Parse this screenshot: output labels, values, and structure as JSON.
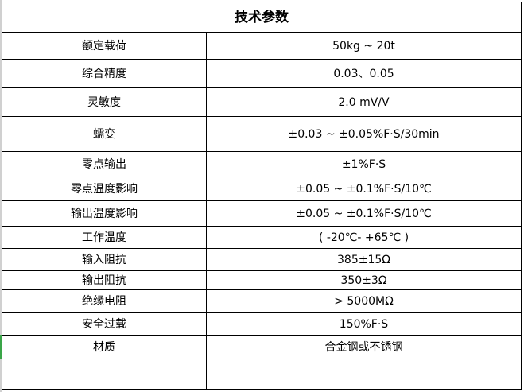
{
  "title": "技术参数",
  "rows": [
    {
      "label": "额定载荷",
      "value": "50kg ~ 20t"
    },
    {
      "label": "综合精度",
      "value": "0.03、0.05"
    },
    {
      "label": "灵敏度",
      "value": "2.0 mV/V"
    },
    {
      "label": "蠕变",
      "value": "±0.03 ~ ±0.05%F·S/30min"
    },
    {
      "label": "零点输出",
      "value": "±1%F·S"
    },
    {
      "label": "零点温度影响",
      "value": "±0.05 ~ ±0.1%F·S/10℃"
    },
    {
      "label": "输出温度影响",
      "value": "±0.05 ~ ±0.1%F·S/10℃"
    },
    {
      "label": "工作温度",
      "value": "( -20℃-  +65℃ )"
    },
    {
      "label": "输入阻抗",
      "value": "385±15Ω"
    },
    {
      "label": "输出阻抗",
      "value": "350±3Ω"
    },
    {
      "label": "绝缘电阻",
      "value": "> 5000MΩ"
    },
    {
      "label": "安全过载",
      "value": "150%F·S"
    },
    {
      "label": "材质",
      "value": "合金钢或不锈钢"
    },
    {
      "label": "",
      "value": ""
    }
  ]
}
